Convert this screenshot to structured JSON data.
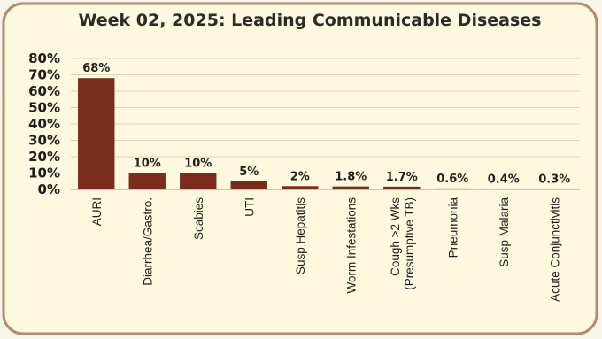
{
  "chart_data": {
    "type": "bar",
    "title": "Week 02, 2025: Leading Communicable Diseases",
    "categories": [
      [
        "AURI"
      ],
      [
        "Diarrhea/Gastro."
      ],
      [
        "Scabies"
      ],
      [
        "UTI"
      ],
      [
        "Susp Hepatitis"
      ],
      [
        "Worm Infestations"
      ],
      [
        "Cough >2 Wks",
        "(Presumptive TB)"
      ],
      [
        "Pneumonia"
      ],
      [
        "Susp Malaria"
      ],
      [
        "Acute Conjunctivitis"
      ]
    ],
    "values": [
      68,
      10,
      10,
      5,
      2,
      1.8,
      1.7,
      0.6,
      0.4,
      0.3
    ],
    "data_labels": [
      "68%",
      "10%",
      "10%",
      "5%",
      "2%",
      "1.8%",
      "1.7%",
      "0.6%",
      "0.4%",
      "0.3%"
    ],
    "ylim": [
      0,
      80
    ],
    "yticks": [
      0,
      10,
      20,
      30,
      40,
      50,
      60,
      70,
      80
    ],
    "ytick_labels": [
      "0%",
      "10%",
      "20%",
      "30%",
      "40%",
      "50%",
      "60%",
      "70%",
      "80%"
    ],
    "grid": true,
    "bar_color": "#7a2d1c",
    "panel_color": "#fdf8de",
    "border_color": "#b38a6e"
  }
}
